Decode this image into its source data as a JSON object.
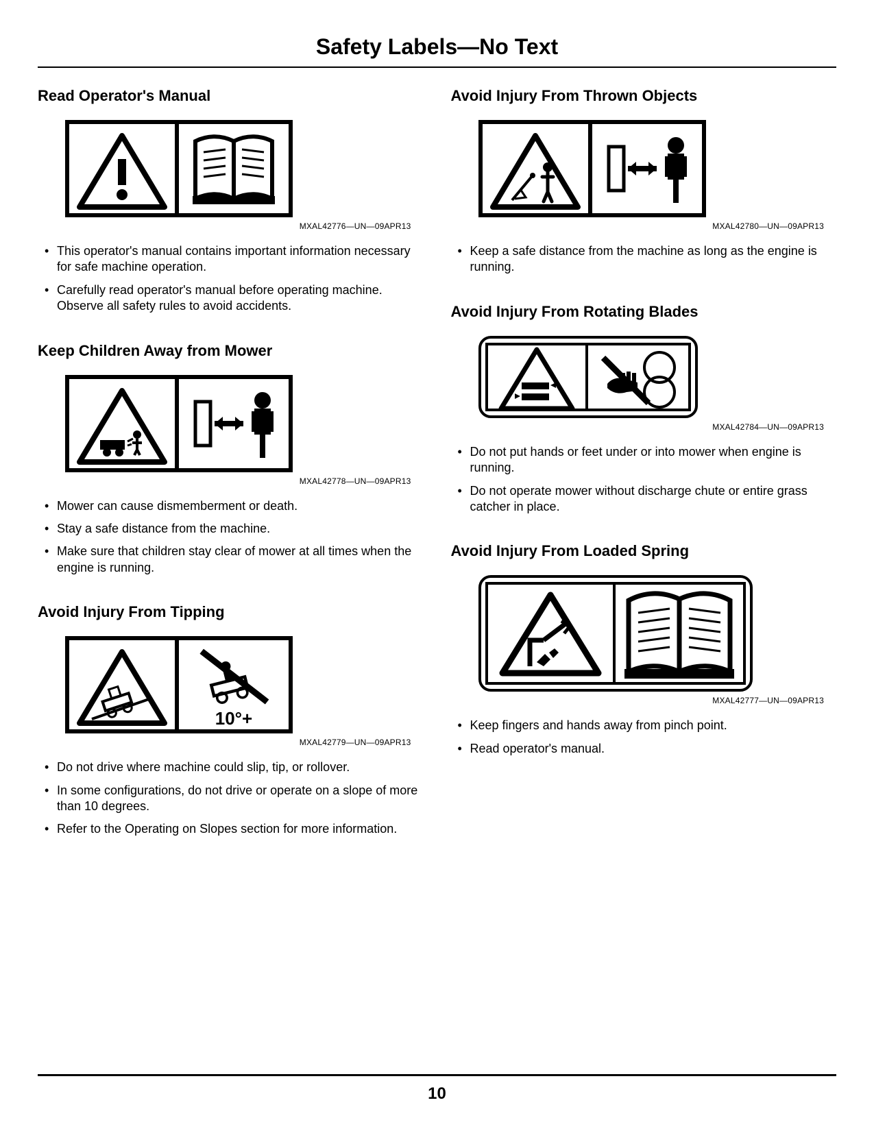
{
  "page": {
    "title": "Safety Labels—No Text",
    "number": "10"
  },
  "left": [
    {
      "title": "Read Operator's Manual",
      "caption": "MXAL42776—UN—09APR13",
      "icon": "warn-book",
      "bullets": [
        "This operator's manual contains important information necessary for safe machine operation.",
        "Carefully read operator's manual before operating machine. Observe all safety rules to avoid accidents."
      ]
    },
    {
      "title": "Keep Children Away from Mower",
      "caption": "MXAL42778—UN—09APR13",
      "icon": "child-away",
      "bullets": [
        "Mower can cause dismemberment or death.",
        "Stay a safe distance from the machine.",
        "Make sure that children stay clear of mower at all times when the engine is running."
      ]
    },
    {
      "title": "Avoid Injury From Tipping",
      "caption": "MXAL42779—UN—09APR13",
      "icon": "tipping",
      "bullets": [
        "Do not drive where machine could slip, tip, or rollover.",
        "In some configurations, do not drive or operate on a slope of more than 10 degrees.",
        "Refer to the Operating on Slopes section for more information."
      ]
    }
  ],
  "right": [
    {
      "title": "Avoid Injury From Thrown Objects",
      "caption": "MXAL42780—UN—09APR13",
      "icon": "thrown",
      "bullets": [
        "Keep a safe distance from the machine as long as the engine is running."
      ]
    },
    {
      "title": "Avoid Injury From Rotating Blades",
      "caption": "MXAL42784—UN—09APR13",
      "icon": "blades",
      "bullets": [
        "Do not put hands or feet under or into mower when engine is running.",
        "Do not operate mower without discharge chute or entire grass catcher in place."
      ]
    },
    {
      "title": "Avoid Injury From Loaded Spring",
      "caption": "MXAL42777—UN—09APR13",
      "icon": "spring",
      "bullets": [
        "Keep fingers and hands away from pinch point.",
        "Read operator's manual."
      ]
    }
  ],
  "tipping_label": "10°+",
  "colors": {
    "text": "#000000",
    "bg": "#ffffff",
    "rule": "#000000"
  }
}
